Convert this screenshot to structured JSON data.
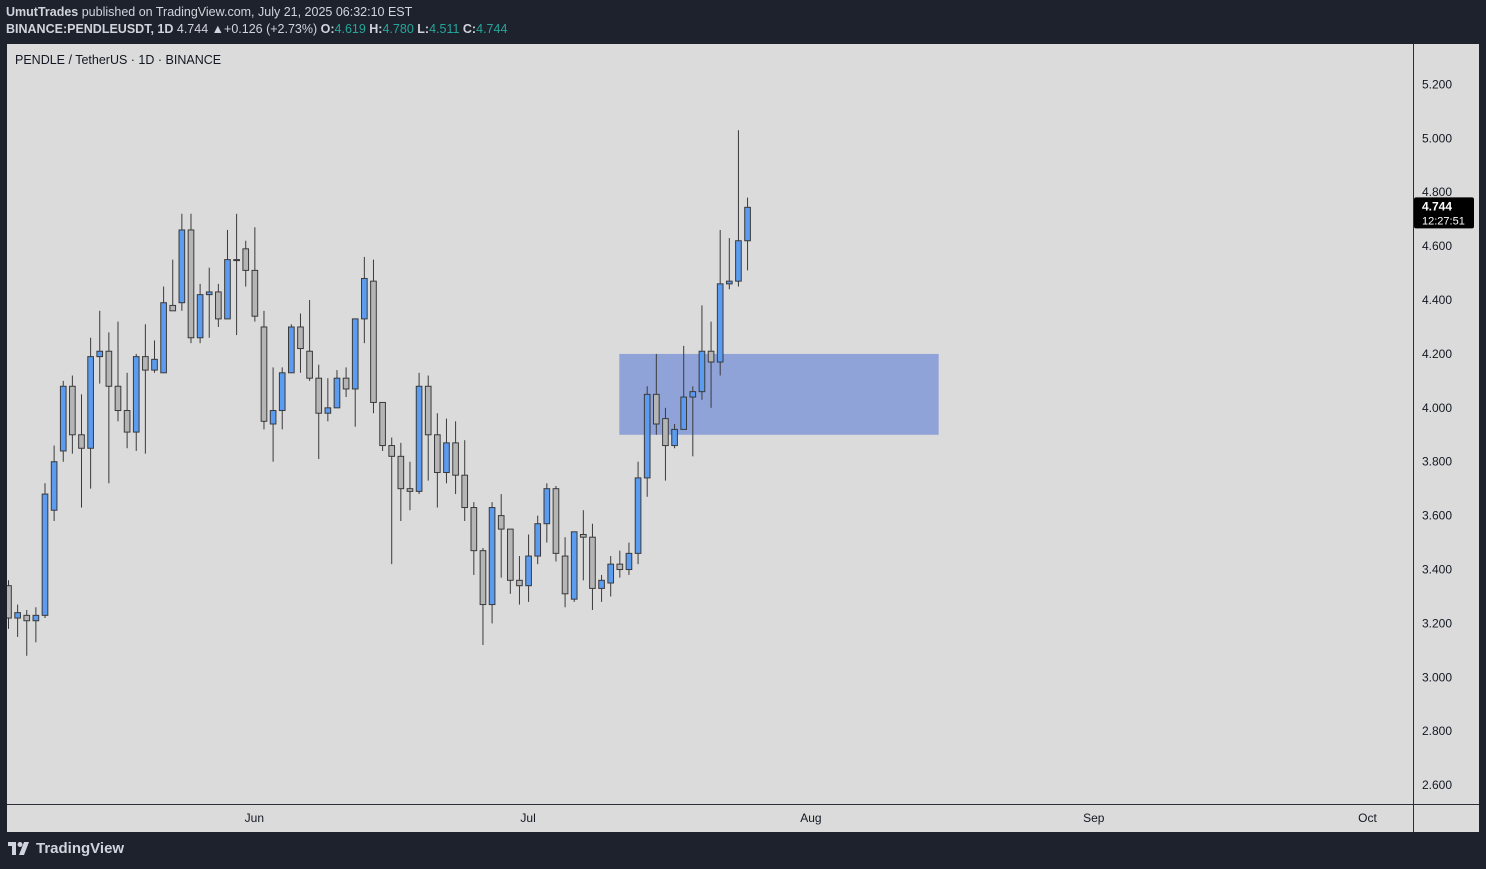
{
  "header": {
    "author": "UmutTrades",
    "published_text": "published on TradingView.com, July 21, 2025 06:32:10 EST",
    "symbol": "BINANCE:PENDLEUSDT, 1D",
    "last": "4.744",
    "change_arrow": "▲",
    "change": "+0.126 (+2.73%)",
    "o_label": "O:",
    "o_value": "4.619",
    "h_label": "H:",
    "h_value": "4.780",
    "l_label": "L:",
    "l_value": "4.511",
    "c_label": "C:",
    "c_value": "4.744"
  },
  "legend": "PENDLE / TetherUS · 1D · BINANCE",
  "footer": {
    "brand": "TradingView",
    "logo_icon": "tradingview-logo-icon"
  },
  "colors": {
    "bull": "#5b9cf0",
    "bear": "#b5b5b5",
    "wick": "#3a3a3a",
    "zone": "#8fa3d9",
    "chart_bg": "#dbdbdb",
    "frame_bg": "#1e222d"
  },
  "chart_data": {
    "type": "candlestick",
    "title": "PENDLE / TetherUS · 1D · BINANCE",
    "timeframe": "1D",
    "y_ticks": [
      "5.200",
      "5.000",
      "4.800",
      "4.600",
      "4.400",
      "4.200",
      "4.000",
      "3.800",
      "3.600",
      "3.400",
      "3.200",
      "3.000",
      "2.800",
      "2.600"
    ],
    "y_range": [
      2.53,
      5.35
    ],
    "x_ticks": [
      {
        "label": "Jun",
        "date": "2025-06-01"
      },
      {
        "label": "Jul",
        "date": "2025-07-01"
      },
      {
        "label": "Aug",
        "date": "2025-08-01"
      },
      {
        "label": "Sep",
        "date": "2025-09-01"
      },
      {
        "label": "Oct",
        "date": "2025-10-01"
      }
    ],
    "x_range": [
      "2025-05-05",
      "2025-10-05"
    ],
    "current_price": {
      "value": 4.744,
      "label": "4.744",
      "countdown": "12:27:51"
    },
    "zone": {
      "start": "2025-07-11",
      "end": "2025-08-15",
      "top": 4.2,
      "bottom": 3.9
    },
    "candles": [
      {
        "d": "2025-05-05",
        "o": 3.34,
        "h": 3.36,
        "l": 3.18,
        "c": 3.22
      },
      {
        "d": "2025-05-06",
        "o": 3.22,
        "h": 3.27,
        "l": 3.15,
        "c": 3.24
      },
      {
        "d": "2025-05-07",
        "o": 3.23,
        "h": 3.25,
        "l": 3.08,
        "c": 3.21
      },
      {
        "d": "2025-05-08",
        "o": 3.21,
        "h": 3.26,
        "l": 3.13,
        "c": 3.23
      },
      {
        "d": "2025-05-09",
        "o": 3.23,
        "h": 3.72,
        "l": 3.22,
        "c": 3.68
      },
      {
        "d": "2025-05-10",
        "o": 3.62,
        "h": 3.86,
        "l": 3.58,
        "c": 3.8
      },
      {
        "d": "2025-05-11",
        "o": 3.84,
        "h": 4.1,
        "l": 3.8,
        "c": 4.08
      },
      {
        "d": "2025-05-12",
        "o": 4.08,
        "h": 4.12,
        "l": 3.83,
        "c": 3.9
      },
      {
        "d": "2025-05-13",
        "o": 3.9,
        "h": 4.05,
        "l": 3.63,
        "c": 3.85
      },
      {
        "d": "2025-05-14",
        "o": 3.85,
        "h": 4.26,
        "l": 3.7,
        "c": 4.19
      },
      {
        "d": "2025-05-15",
        "o": 4.19,
        "h": 4.36,
        "l": 4.09,
        "c": 4.21
      },
      {
        "d": "2025-05-16",
        "o": 4.21,
        "h": 4.28,
        "l": 3.72,
        "c": 4.08
      },
      {
        "d": "2025-05-17",
        "o": 4.08,
        "h": 4.32,
        "l": 3.95,
        "c": 3.99
      },
      {
        "d": "2025-05-18",
        "o": 3.99,
        "h": 4.13,
        "l": 3.85,
        "c": 3.91
      },
      {
        "d": "2025-05-19",
        "o": 3.91,
        "h": 4.2,
        "l": 3.84,
        "c": 4.19
      },
      {
        "d": "2025-05-20",
        "o": 4.19,
        "h": 4.31,
        "l": 3.83,
        "c": 4.14
      },
      {
        "d": "2025-05-21",
        "o": 4.14,
        "h": 4.25,
        "l": 4.13,
        "c": 4.18
      },
      {
        "d": "2025-05-22",
        "o": 4.13,
        "h": 4.45,
        "l": 4.13,
        "c": 4.39
      },
      {
        "d": "2025-05-23",
        "o": 4.38,
        "h": 4.55,
        "l": 4.36,
        "c": 4.36
      },
      {
        "d": "2025-05-24",
        "o": 4.39,
        "h": 4.72,
        "l": 4.36,
        "c": 4.66
      },
      {
        "d": "2025-05-25",
        "o": 4.66,
        "h": 4.72,
        "l": 4.24,
        "c": 4.26
      },
      {
        "d": "2025-05-26",
        "o": 4.26,
        "h": 4.46,
        "l": 4.24,
        "c": 4.42
      },
      {
        "d": "2025-05-27",
        "o": 4.42,
        "h": 4.52,
        "l": 4.26,
        "c": 4.43
      },
      {
        "d": "2025-05-28",
        "o": 4.43,
        "h": 4.46,
        "l": 4.3,
        "c": 4.33
      },
      {
        "d": "2025-05-29",
        "o": 4.33,
        "h": 4.66,
        "l": 4.33,
        "c": 4.55
      },
      {
        "d": "2025-05-30",
        "o": 4.55,
        "h": 4.72,
        "l": 4.27,
        "c": 4.55
      },
      {
        "d": "2025-05-31",
        "o": 4.59,
        "h": 4.62,
        "l": 4.45,
        "c": 4.51
      },
      {
        "d": "2025-06-01",
        "o": 4.51,
        "h": 4.67,
        "l": 4.32,
        "c": 4.34
      },
      {
        "d": "2025-06-02",
        "o": 4.3,
        "h": 4.36,
        "l": 3.92,
        "c": 3.95
      },
      {
        "d": "2025-06-03",
        "o": 3.94,
        "h": 4.15,
        "l": 3.8,
        "c": 3.99
      },
      {
        "d": "2025-06-04",
        "o": 3.99,
        "h": 4.15,
        "l": 3.92,
        "c": 4.13
      },
      {
        "d": "2025-06-05",
        "o": 4.13,
        "h": 4.31,
        "l": 4.13,
        "c": 4.3
      },
      {
        "d": "2025-06-06",
        "o": 4.3,
        "h": 4.35,
        "l": 4.13,
        "c": 4.22
      },
      {
        "d": "2025-06-07",
        "o": 4.21,
        "h": 4.4,
        "l": 4.1,
        "c": 4.11
      },
      {
        "d": "2025-06-08",
        "o": 4.11,
        "h": 4.16,
        "l": 3.81,
        "c": 3.98
      },
      {
        "d": "2025-06-09",
        "o": 3.98,
        "h": 4.11,
        "l": 3.95,
        "c": 4.0
      },
      {
        "d": "2025-06-10",
        "o": 4.0,
        "h": 4.14,
        "l": 4.0,
        "c": 4.11
      },
      {
        "d": "2025-06-11",
        "o": 4.11,
        "h": 4.15,
        "l": 4.04,
        "c": 4.07
      },
      {
        "d": "2025-06-12",
        "o": 4.07,
        "h": 4.33,
        "l": 3.93,
        "c": 4.33
      },
      {
        "d": "2025-06-13",
        "o": 4.33,
        "h": 4.56,
        "l": 4.24,
        "c": 4.48
      },
      {
        "d": "2025-06-14",
        "o": 4.47,
        "h": 4.55,
        "l": 3.98,
        "c": 4.02
      },
      {
        "d": "2025-06-15",
        "o": 4.02,
        "h": 4.0,
        "l": 3.84,
        "c": 3.86
      },
      {
        "d": "2025-06-16",
        "o": 3.86,
        "h": 3.89,
        "l": 3.42,
        "c": 3.82
      },
      {
        "d": "2025-06-17",
        "o": 3.82,
        "h": 3.87,
        "l": 3.58,
        "c": 3.7
      },
      {
        "d": "2025-06-18",
        "o": 3.7,
        "h": 3.8,
        "l": 3.62,
        "c": 3.69
      },
      {
        "d": "2025-06-19",
        "o": 3.69,
        "h": 4.13,
        "l": 3.68,
        "c": 4.08
      },
      {
        "d": "2025-06-20",
        "o": 4.08,
        "h": 4.12,
        "l": 3.73,
        "c": 3.9
      },
      {
        "d": "2025-06-21",
        "o": 3.9,
        "h": 3.98,
        "l": 3.63,
        "c": 3.76
      },
      {
        "d": "2025-06-22",
        "o": 3.76,
        "h": 3.96,
        "l": 3.72,
        "c": 3.87
      },
      {
        "d": "2025-06-23",
        "o": 3.87,
        "h": 3.95,
        "l": 3.68,
        "c": 3.75
      },
      {
        "d": "2025-06-24",
        "o": 3.75,
        "h": 3.88,
        "l": 3.58,
        "c": 3.63
      },
      {
        "d": "2025-06-25",
        "o": 3.63,
        "h": 3.65,
        "l": 3.38,
        "c": 3.47
      },
      {
        "d": "2025-06-26",
        "o": 3.47,
        "h": 3.48,
        "l": 3.12,
        "c": 3.27
      },
      {
        "d": "2025-06-27",
        "o": 3.27,
        "h": 3.65,
        "l": 3.2,
        "c": 3.63
      },
      {
        "d": "2025-06-28",
        "o": 3.6,
        "h": 3.68,
        "l": 3.37,
        "c": 3.55
      },
      {
        "d": "2025-06-29",
        "o": 3.55,
        "h": 3.55,
        "l": 3.31,
        "c": 3.36
      },
      {
        "d": "2025-06-30",
        "o": 3.36,
        "h": 3.45,
        "l": 3.27,
        "c": 3.34
      },
      {
        "d": "2025-07-01",
        "o": 3.34,
        "h": 3.53,
        "l": 3.28,
        "c": 3.45
      },
      {
        "d": "2025-07-02",
        "o": 3.45,
        "h": 3.6,
        "l": 3.42,
        "c": 3.57
      },
      {
        "d": "2025-07-03",
        "o": 3.57,
        "h": 3.72,
        "l": 3.5,
        "c": 3.7
      },
      {
        "d": "2025-07-04",
        "o": 3.7,
        "h": 3.71,
        "l": 3.43,
        "c": 3.46
      },
      {
        "d": "2025-07-05",
        "o": 3.45,
        "h": 3.52,
        "l": 3.26,
        "c": 3.31
      },
      {
        "d": "2025-07-06",
        "o": 3.29,
        "h": 3.54,
        "l": 3.28,
        "c": 3.54
      },
      {
        "d": "2025-07-07",
        "o": 3.53,
        "h": 3.62,
        "l": 3.36,
        "c": 3.52
      },
      {
        "d": "2025-07-08",
        "o": 3.52,
        "h": 3.57,
        "l": 3.25,
        "c": 3.33
      },
      {
        "d": "2025-07-09",
        "o": 3.33,
        "h": 3.38,
        "l": 3.28,
        "c": 3.36
      },
      {
        "d": "2025-07-10",
        "o": 3.35,
        "h": 3.45,
        "l": 3.3,
        "c": 3.42
      },
      {
        "d": "2025-07-11",
        "o": 3.42,
        "h": 3.47,
        "l": 3.37,
        "c": 3.4
      },
      {
        "d": "2025-07-12",
        "o": 3.4,
        "h": 3.5,
        "l": 3.38,
        "c": 3.46
      },
      {
        "d": "2025-07-13",
        "o": 3.46,
        "h": 3.8,
        "l": 3.42,
        "c": 3.74
      },
      {
        "d": "2025-07-14",
        "o": 3.74,
        "h": 4.08,
        "l": 3.67,
        "c": 4.05
      },
      {
        "d": "2025-07-15",
        "o": 4.05,
        "h": 4.2,
        "l": 3.9,
        "c": 3.94
      },
      {
        "d": "2025-07-16",
        "o": 3.96,
        "h": 4.0,
        "l": 3.73,
        "c": 3.86
      },
      {
        "d": "2025-07-17",
        "o": 3.86,
        "h": 3.94,
        "l": 3.85,
        "c": 3.92
      },
      {
        "d": "2025-07-18",
        "o": 3.92,
        "h": 4.23,
        "l": 3.92,
        "c": 4.04
      },
      {
        "d": "2025-07-19",
        "o": 4.04,
        "h": 4.08,
        "l": 3.82,
        "c": 4.06
      },
      {
        "d": "2025-07-20",
        "o": 4.06,
        "h": 4.38,
        "l": 4.03,
        "c": 4.21
      },
      {
        "d": "2025-07-21",
        "o": 4.21,
        "h": 4.32,
        "l": 4.0,
        "c": 4.17
      },
      {
        "d": "2025-07-22",
        "o": 4.17,
        "h": 4.66,
        "l": 4.12,
        "c": 4.46
      },
      {
        "d": "2025-07-23",
        "o": 4.46,
        "h": 4.63,
        "l": 4.44,
        "c": 4.47
      },
      {
        "d": "2025-07-24",
        "o": 4.47,
        "h": 5.03,
        "l": 4.45,
        "c": 4.62
      },
      {
        "d": "2025-07-25",
        "o": 4.62,
        "h": 4.78,
        "l": 4.51,
        "c": 4.744
      }
    ]
  }
}
